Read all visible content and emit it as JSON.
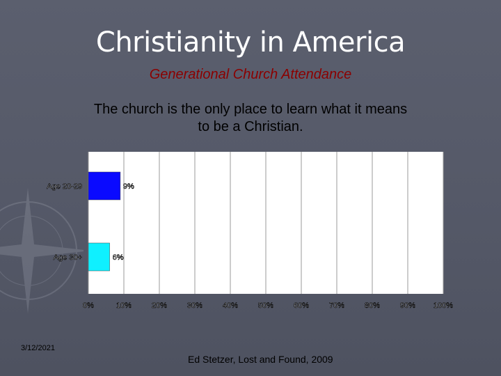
{
  "slide": {
    "title": "Christianity in America",
    "subtitle": "Generational Church Attendance",
    "question": "The church is the only place to learn what it means to be a Christian.",
    "date": "3/12/2021",
    "credit": "Ed Stetzer, Lost and Found, 2009"
  },
  "colors": {
    "bar_age_20_29": "#0a0aff",
    "bar_age_30_plus": "#0ff0ff",
    "subtitle": "#8b0000"
  },
  "chart_data": {
    "type": "bar",
    "orientation": "horizontal",
    "title": "The church is the only place to learn what it means to be a Christian.",
    "categories": [
      "Age 20-29",
      "Age 30+"
    ],
    "values": [
      9,
      6
    ],
    "value_labels": [
      "9%",
      "6%"
    ],
    "xlim": [
      0,
      100
    ],
    "x_ticks": [
      "0%",
      "10%",
      "20%",
      "30%",
      "40%",
      "50%",
      "60%",
      "70%",
      "80%",
      "90%",
      "100%"
    ],
    "grid": true,
    "xlabel": "",
    "ylabel": ""
  }
}
